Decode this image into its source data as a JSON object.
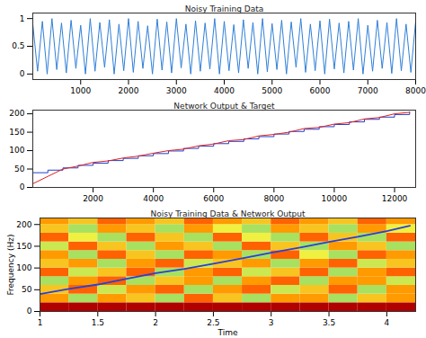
{
  "chart_data": [
    {
      "type": "line",
      "title": "Noisy Training Data",
      "x": [
        0,
        100,
        200,
        300,
        400,
        500,
        600,
        700,
        800,
        900,
        1000,
        1100,
        1200,
        1300,
        1400,
        1500,
        1600,
        1700,
        1800,
        1900,
        2000,
        2100,
        2200,
        2300,
        2400,
        2500,
        2600,
        2700,
        2800,
        2900,
        3000,
        3100,
        3200,
        3300,
        3400,
        3500,
        3600,
        3700,
        3800,
        3900,
        4000,
        4100,
        4200,
        4300,
        4400,
        4500,
        4600,
        4700,
        4800,
        4900,
        5000,
        5100,
        5200,
        5300,
        5400,
        5500,
        5600,
        5700,
        5800,
        5900,
        6000,
        6100,
        6200,
        6300,
        6400,
        6500,
        6600,
        6700,
        6800,
        6900,
        7000,
        7100,
        7200,
        7300,
        7400,
        7500,
        7600,
        7700,
        7800,
        7900,
        8000
      ],
      "series": [
        {
          "color": "#2f7fd8",
          "values": [
            0.9,
            0.05,
            0.95,
            0.0,
            1.0,
            0.08,
            0.92,
            0.02,
            0.97,
            0.1,
            0.88,
            0.0,
            1.0,
            0.05,
            0.93,
            0.12,
            0.98,
            0.0,
            0.9,
            0.06,
            1.0,
            0.03,
            0.95,
            0.1,
            0.87,
            0.0,
            0.99,
            0.07,
            0.94,
            0.02,
            1.0,
            0.11,
            0.9,
            0.0,
            0.96,
            0.05,
            0.92,
            0.09,
            1.0,
            0.0,
            0.95,
            0.06,
            0.89,
            0.02,
            0.98,
            0.1,
            0.93,
            0.0,
            1.0,
            0.04,
            0.91,
            0.08,
            0.97,
            0.0,
            0.94,
            0.12,
            1.0,
            0.03,
            0.9,
            0.06,
            0.96,
            0.0,
            0.99,
            0.09,
            0.92,
            0.02,
            0.95,
            0.07,
            1.0,
            0.0,
            0.88,
            0.05,
            0.97,
            0.1,
            0.93,
            0.01,
            1.0,
            0.06,
            0.9,
            0.03,
            0.95
          ]
        }
      ],
      "xlim": [
        0,
        8000
      ],
      "xticks": [
        1000,
        2000,
        3000,
        4000,
        5000,
        6000,
        7000,
        8000
      ],
      "ylim": [
        -0.1,
        1.1
      ],
      "yticks": [
        0,
        0.5,
        1
      ]
    },
    {
      "type": "line",
      "title": "Network Output & Target",
      "x": [
        0,
        500,
        1000,
        1500,
        2000,
        2500,
        3000,
        3500,
        4000,
        4500,
        5000,
        5500,
        6000,
        6500,
        7000,
        7500,
        8000,
        8500,
        9000,
        9500,
        10000,
        10500,
        11000,
        11500,
        12000,
        12500
      ],
      "series": [
        {
          "color": "#1f3fd0",
          "line_style": "step",
          "values": [
            40,
            47,
            53,
            60,
            66,
            73,
            79,
            86,
            92,
            99,
            106,
            112,
            119,
            125,
            132,
            138,
            145,
            152,
            158,
            165,
            171,
            178,
            185,
            191,
            198,
            205
          ]
        },
        {
          "color": "#e02020",
          "values": [
            10,
            30,
            50,
            58,
            68,
            72,
            80,
            85,
            93,
            100,
            104,
            113,
            118,
            127,
            130,
            140,
            144,
            150,
            160,
            163,
            172,
            176,
            186,
            190,
            200,
            204
          ]
        }
      ],
      "xlim": [
        0,
        12700
      ],
      "xticks": [
        2000,
        4000,
        6000,
        8000,
        10000,
        12000
      ],
      "ylim": [
        0,
        210
      ],
      "yticks": [
        0,
        50,
        100,
        150,
        200
      ]
    },
    {
      "type": "heatmap",
      "title": "Noisy Training Data & Network Output",
      "x_label": "Time",
      "y_label": "Frequency (Hz)",
      "cells": {
        "x": [
          1,
          1.25,
          1.5,
          1.75,
          2,
          2.25,
          2.5,
          2.75,
          3,
          3.25,
          3.5,
          3.75,
          4,
          4.25
        ],
        "y": [
          0,
          20,
          40,
          60,
          80,
          100,
          120,
          140,
          160,
          180,
          200,
          220
        ],
        "values": [
          [
            0,
            0,
            0,
            0,
            0,
            0,
            0,
            0,
            0,
            0,
            0,
            0,
            0
          ],
          [
            0.4,
            0.8,
            0.4,
            0.5,
            0.8,
            0.3,
            0.5,
            0.8,
            0.4,
            0.4,
            0.8,
            0.5,
            0.4
          ],
          [
            0.5,
            0.3,
            0.7,
            0.4,
            0.3,
            0.8,
            0.4,
            0.3,
            0.7,
            0.5,
            0.3,
            0.8,
            0.4
          ],
          [
            0.8,
            0.4,
            0.3,
            0.8,
            0.5,
            0.4,
            0.8,
            0.4,
            0.3,
            0.8,
            0.4,
            0.4,
            0.7
          ],
          [
            0.3,
            0.7,
            0.5,
            0.3,
            0.8,
            0.4,
            0.3,
            0.7,
            0.5,
            0.3,
            0.8,
            0.4,
            0.3
          ],
          [
            0.5,
            0.4,
            0.8,
            0.4,
            0.3,
            0.7,
            0.5,
            0.4,
            0.8,
            0.4,
            0.3,
            0.7,
            0.5
          ],
          [
            0.4,
            0.8,
            0.3,
            0.5,
            0.8,
            0.3,
            0.4,
            0.8,
            0.3,
            0.6,
            0.8,
            0.3,
            0.4
          ],
          [
            0.7,
            0.3,
            0.5,
            0.8,
            0.4,
            0.5,
            0.8,
            0.3,
            0.5,
            0.8,
            0.4,
            0.5,
            0.8
          ],
          [
            0.3,
            0.6,
            0.8,
            0.3,
            0.5,
            0.8,
            0.3,
            0.6,
            0.8,
            0.3,
            0.5,
            0.8,
            0.3
          ],
          [
            0.5,
            0.8,
            0.4,
            0.5,
            0.8,
            0.4,
            0.6,
            0.8,
            0.4,
            0.5,
            0.8,
            0.4,
            0.6
          ],
          [
            0.4,
            0.5,
            0.3,
            0.4,
            0.5,
            0.3,
            0.4,
            0.5,
            0.3,
            0.4,
            0.5,
            0.3,
            0.4
          ]
        ]
      },
      "x": [
        1,
        1.25,
        1.5,
        1.75,
        2,
        2.25,
        2.5,
        2.75,
        3,
        3.25,
        3.5,
        3.75,
        4,
        4.2
      ],
      "series": [
        {
          "color": "#2a3fd8",
          "values": [
            40,
            52,
            62,
            75,
            88,
            98,
            110,
            122,
            135,
            147,
            160,
            172,
            185,
            197
          ]
        }
      ],
      "xlim": [
        1,
        4.25
      ],
      "xticks": [
        1,
        1.5,
        2,
        2.5,
        3,
        3.5,
        4
      ],
      "ylim": [
        0,
        215
      ],
      "yticks": [
        0,
        50,
        100,
        150,
        200
      ]
    }
  ]
}
